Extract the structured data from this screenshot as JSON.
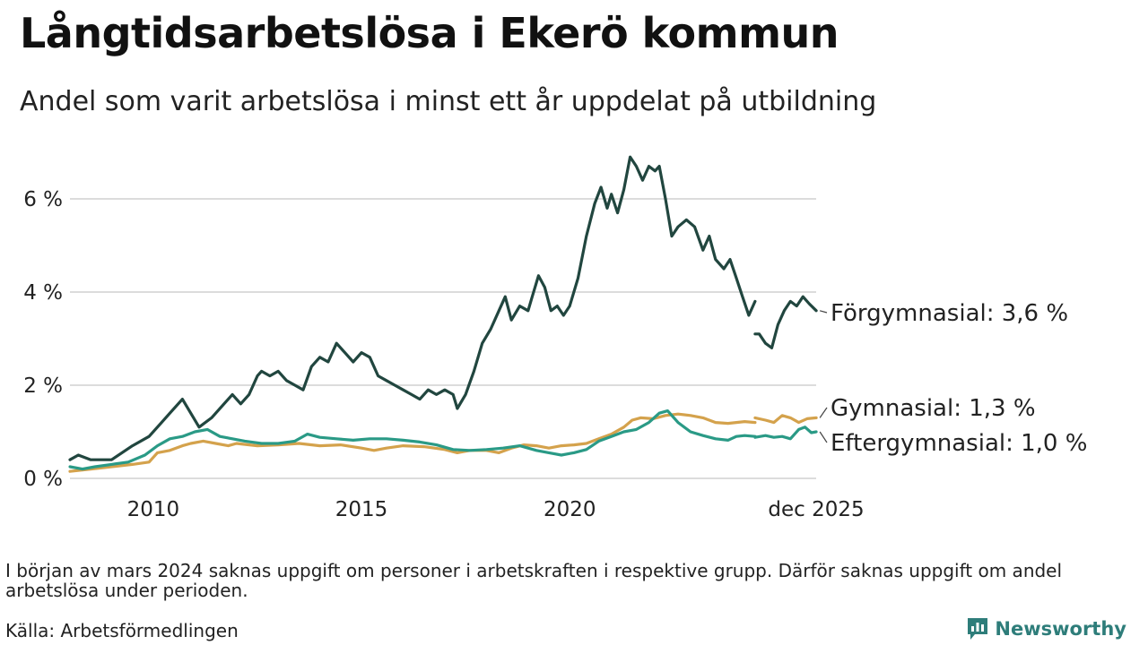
{
  "header": {
    "title": "Långtidsarbetslösa i Ekerö kommun",
    "subtitle": "Andel som varit arbetslösa i minst ett år uppdelat på utbildning"
  },
  "footer": {
    "note": "I början av mars 2024 saknas uppgift om personer i arbetskraften i respektive grupp. Därför saknas uppgift om andel arbetslösa under perioden.",
    "source": "Källa: Arbetsförmedlingen",
    "brand": "Newsworthy"
  },
  "colors": {
    "forgymnasial": "#21463f",
    "gymnasial": "#d4a24c",
    "eftergymnasial": "#2a9a86",
    "grid": "#dcdcdc",
    "brand": "#2e7d7a"
  },
  "chart_data": {
    "type": "line",
    "title": "Långtidsarbetslösa i Ekerö kommun",
    "xlabel": "",
    "ylabel": "",
    "ylim": [
      0,
      7
    ],
    "xlim": [
      2008.0,
      2025.917
    ],
    "y_ticks": [
      0,
      2,
      4,
      6
    ],
    "y_tick_labels": [
      "0 %",
      "2 %",
      "4 %",
      "6 %"
    ],
    "x_ticks": [
      2010,
      2015,
      2020,
      2025.917
    ],
    "x_tick_labels": [
      "2010",
      "2015",
      "2020",
      "dec 2025"
    ],
    "gap": [
      2024.0,
      2024.4
    ],
    "series": [
      {
        "name": "Förgymnasial",
        "label": "Förgymnasial: 3,6 %",
        "color": "#21463f",
        "points": [
          [
            2008.0,
            0.4
          ],
          [
            2008.2,
            0.5
          ],
          [
            2008.5,
            0.4
          ],
          [
            2009.0,
            0.4
          ],
          [
            2009.5,
            0.7
          ],
          [
            2009.9,
            0.9
          ],
          [
            2010.2,
            1.2
          ],
          [
            2010.4,
            1.4
          ],
          [
            2010.7,
            1.7
          ],
          [
            2010.9,
            1.4
          ],
          [
            2011.1,
            1.1
          ],
          [
            2011.4,
            1.3
          ],
          [
            2011.7,
            1.6
          ],
          [
            2011.9,
            1.8
          ],
          [
            2012.1,
            1.6
          ],
          [
            2012.3,
            1.8
          ],
          [
            2012.5,
            2.2
          ],
          [
            2012.6,
            2.3
          ],
          [
            2012.8,
            2.2
          ],
          [
            2013.0,
            2.3
          ],
          [
            2013.2,
            2.1
          ],
          [
            2013.4,
            2.0
          ],
          [
            2013.6,
            1.9
          ],
          [
            2013.8,
            2.4
          ],
          [
            2014.0,
            2.6
          ],
          [
            2014.2,
            2.5
          ],
          [
            2014.4,
            2.9
          ],
          [
            2014.6,
            2.7
          ],
          [
            2014.8,
            2.5
          ],
          [
            2015.0,
            2.7
          ],
          [
            2015.2,
            2.6
          ],
          [
            2015.4,
            2.2
          ],
          [
            2015.6,
            2.1
          ],
          [
            2015.8,
            2.0
          ],
          [
            2016.0,
            1.9
          ],
          [
            2016.2,
            1.8
          ],
          [
            2016.4,
            1.7
          ],
          [
            2016.6,
            1.9
          ],
          [
            2016.8,
            1.8
          ],
          [
            2017.0,
            1.9
          ],
          [
            2017.2,
            1.8
          ],
          [
            2017.3,
            1.5
          ],
          [
            2017.5,
            1.8
          ],
          [
            2017.7,
            2.3
          ],
          [
            2017.9,
            2.9
          ],
          [
            2018.1,
            3.2
          ],
          [
            2018.3,
            3.6
          ],
          [
            2018.45,
            3.9
          ],
          [
            2018.6,
            3.4
          ],
          [
            2018.8,
            3.7
          ],
          [
            2019.0,
            3.6
          ],
          [
            2019.1,
            3.9
          ],
          [
            2019.25,
            4.35
          ],
          [
            2019.4,
            4.1
          ],
          [
            2019.55,
            3.6
          ],
          [
            2019.7,
            3.7
          ],
          [
            2019.85,
            3.5
          ],
          [
            2020.0,
            3.7
          ],
          [
            2020.2,
            4.3
          ],
          [
            2020.4,
            5.2
          ],
          [
            2020.6,
            5.9
          ],
          [
            2020.75,
            6.25
          ],
          [
            2020.9,
            5.8
          ],
          [
            2021.0,
            6.1
          ],
          [
            2021.15,
            5.7
          ],
          [
            2021.3,
            6.2
          ],
          [
            2021.45,
            6.9
          ],
          [
            2021.6,
            6.7
          ],
          [
            2021.75,
            6.4
          ],
          [
            2021.9,
            6.7
          ],
          [
            2022.05,
            6.6
          ],
          [
            2022.15,
            6.7
          ],
          [
            2022.3,
            6.0
          ],
          [
            2022.45,
            5.2
          ],
          [
            2022.6,
            5.4
          ],
          [
            2022.8,
            5.55
          ],
          [
            2023.0,
            5.4
          ],
          [
            2023.2,
            4.9
          ],
          [
            2023.35,
            5.2
          ],
          [
            2023.5,
            4.7
          ],
          [
            2023.7,
            4.5
          ],
          [
            2023.85,
            4.7
          ],
          [
            2024.0,
            4.3
          ],
          [
            2024.15,
            3.9
          ],
          [
            2024.3,
            3.5
          ],
          [
            2024.45,
            3.8
          ],
          [
            null,
            null
          ],
          [
            2024.45,
            3.1
          ],
          [
            2024.55,
            3.1
          ],
          [
            2024.7,
            2.9
          ],
          [
            2024.85,
            2.8
          ],
          [
            2025.0,
            3.3
          ],
          [
            2025.15,
            3.6
          ],
          [
            2025.3,
            3.8
          ],
          [
            2025.45,
            3.7
          ],
          [
            2025.6,
            3.9
          ],
          [
            2025.75,
            3.75
          ],
          [
            2025.92,
            3.6
          ]
        ]
      },
      {
        "name": "Gymnasial",
        "label": "Gymnasial: 1,3 %",
        "color": "#d4a24c",
        "points": [
          [
            2008.0,
            0.15
          ],
          [
            2008.5,
            0.2
          ],
          [
            2009.0,
            0.25
          ],
          [
            2009.5,
            0.3
          ],
          [
            2009.9,
            0.35
          ],
          [
            2010.1,
            0.55
          ],
          [
            2010.4,
            0.6
          ],
          [
            2010.7,
            0.7
          ],
          [
            2010.9,
            0.75
          ],
          [
            2011.2,
            0.8
          ],
          [
            2011.5,
            0.75
          ],
          [
            2011.8,
            0.7
          ],
          [
            2012.0,
            0.75
          ],
          [
            2012.5,
            0.7
          ],
          [
            2013.0,
            0.72
          ],
          [
            2013.5,
            0.75
          ],
          [
            2014.0,
            0.7
          ],
          [
            2014.5,
            0.72
          ],
          [
            2015.0,
            0.65
          ],
          [
            2015.3,
            0.6
          ],
          [
            2015.6,
            0.65
          ],
          [
            2016.0,
            0.7
          ],
          [
            2016.5,
            0.68
          ],
          [
            2017.0,
            0.62
          ],
          [
            2017.3,
            0.55
          ],
          [
            2017.6,
            0.6
          ],
          [
            2018.0,
            0.6
          ],
          [
            2018.3,
            0.55
          ],
          [
            2018.6,
            0.65
          ],
          [
            2018.9,
            0.72
          ],
          [
            2019.2,
            0.7
          ],
          [
            2019.5,
            0.65
          ],
          [
            2019.8,
            0.7
          ],
          [
            2020.1,
            0.72
          ],
          [
            2020.4,
            0.75
          ],
          [
            2020.7,
            0.85
          ],
          [
            2021.0,
            0.95
          ],
          [
            2021.3,
            1.1
          ],
          [
            2021.5,
            1.25
          ],
          [
            2021.7,
            1.3
          ],
          [
            2022.0,
            1.28
          ],
          [
            2022.3,
            1.35
          ],
          [
            2022.6,
            1.38
          ],
          [
            2022.9,
            1.35
          ],
          [
            2023.2,
            1.3
          ],
          [
            2023.5,
            1.2
          ],
          [
            2023.8,
            1.18
          ],
          [
            2024.0,
            1.2
          ],
          [
            2024.2,
            1.22
          ],
          [
            2024.45,
            1.2
          ],
          [
            null,
            null
          ],
          [
            2024.45,
            1.3
          ],
          [
            2024.7,
            1.25
          ],
          [
            2024.9,
            1.2
          ],
          [
            2025.1,
            1.35
          ],
          [
            2025.3,
            1.3
          ],
          [
            2025.5,
            1.2
          ],
          [
            2025.7,
            1.28
          ],
          [
            2025.92,
            1.3
          ]
        ]
      },
      {
        "name": "Eftergymnasial",
        "label": "Eftergymnasial: 1,0 %",
        "color": "#2a9a86",
        "points": [
          [
            2008.0,
            0.25
          ],
          [
            2008.3,
            0.2
          ],
          [
            2008.6,
            0.25
          ],
          [
            2009.0,
            0.3
          ],
          [
            2009.4,
            0.35
          ],
          [
            2009.8,
            0.5
          ],
          [
            2010.1,
            0.7
          ],
          [
            2010.4,
            0.85
          ],
          [
            2010.7,
            0.9
          ],
          [
            2011.0,
            1.0
          ],
          [
            2011.3,
            1.05
          ],
          [
            2011.6,
            0.9
          ],
          [
            2011.9,
            0.85
          ],
          [
            2012.2,
            0.8
          ],
          [
            2012.6,
            0.75
          ],
          [
            2013.0,
            0.75
          ],
          [
            2013.4,
            0.8
          ],
          [
            2013.7,
            0.95
          ],
          [
            2014.0,
            0.88
          ],
          [
            2014.4,
            0.85
          ],
          [
            2014.8,
            0.82
          ],
          [
            2015.2,
            0.85
          ],
          [
            2015.6,
            0.85
          ],
          [
            2016.0,
            0.82
          ],
          [
            2016.4,
            0.78
          ],
          [
            2016.8,
            0.72
          ],
          [
            2017.2,
            0.62
          ],
          [
            2017.6,
            0.6
          ],
          [
            2018.0,
            0.62
          ],
          [
            2018.4,
            0.65
          ],
          [
            2018.8,
            0.7
          ],
          [
            2019.2,
            0.6
          ],
          [
            2019.5,
            0.55
          ],
          [
            2019.8,
            0.5
          ],
          [
            2020.1,
            0.55
          ],
          [
            2020.4,
            0.62
          ],
          [
            2020.7,
            0.8
          ],
          [
            2021.0,
            0.9
          ],
          [
            2021.3,
            1.0
          ],
          [
            2021.6,
            1.05
          ],
          [
            2021.9,
            1.2
          ],
          [
            2022.15,
            1.4
          ],
          [
            2022.35,
            1.45
          ],
          [
            2022.6,
            1.2
          ],
          [
            2022.9,
            1.0
          ],
          [
            2023.2,
            0.92
          ],
          [
            2023.5,
            0.85
          ],
          [
            2023.8,
            0.82
          ],
          [
            2024.0,
            0.9
          ],
          [
            2024.2,
            0.92
          ],
          [
            2024.45,
            0.9
          ],
          [
            null,
            null
          ],
          [
            2024.45,
            0.88
          ],
          [
            2024.7,
            0.92
          ],
          [
            2024.9,
            0.88
          ],
          [
            2025.1,
            0.9
          ],
          [
            2025.3,
            0.85
          ],
          [
            2025.5,
            1.05
          ],
          [
            2025.65,
            1.1
          ],
          [
            2025.8,
            0.98
          ],
          [
            2025.92,
            1.0
          ]
        ]
      }
    ]
  }
}
